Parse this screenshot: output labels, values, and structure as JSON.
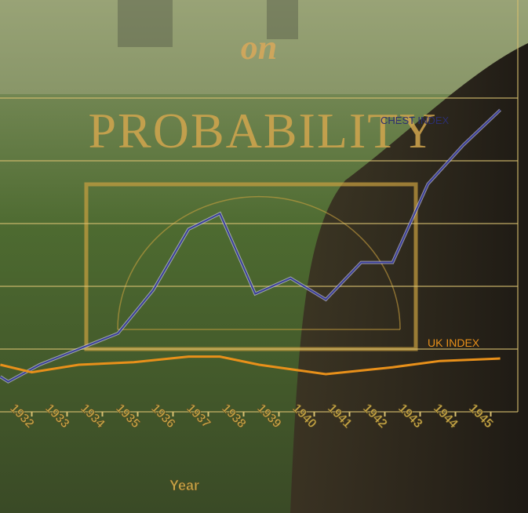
{
  "chart_data": {
    "type": "line",
    "cover_word": "on",
    "cover_title": "PROBABILITY",
    "x_label": "Year",
    "xlim": [
      1931.1,
      1946.0
    ],
    "ylim": [
      0,
      6.5
    ],
    "xticks": [
      1932,
      1933,
      1934,
      1935,
      1936,
      1937,
      1938,
      1939,
      1940,
      1941,
      1942,
      1943,
      1944,
      1945
    ],
    "yticks": [
      0,
      1,
      2,
      3,
      4,
      5
    ],
    "grid": true,
    "series": [
      {
        "name": "CHEST INDEX",
        "color": "#3b3f9c",
        "x": [
          1931.11,
          1931.33,
          1932.22,
          1933.33,
          1934.44,
          1935.44,
          1936.44,
          1937.33,
          1938.33,
          1939.33,
          1940.33,
          1941.33,
          1942.22,
          1943.22,
          1944.22,
          1945.27
        ],
        "values": [
          0.56,
          0.48,
          0.75,
          1.0,
          1.25,
          1.94,
          2.91,
          3.16,
          1.88,
          2.13,
          1.79,
          2.38,
          2.38,
          3.63,
          4.25,
          4.81
        ]
      },
      {
        "name": "UK INDEX",
        "color": "#e8901a",
        "x": [
          1931.11,
          1932.0,
          1933.33,
          1934.89,
          1936.44,
          1937.33,
          1938.44,
          1940.33,
          1942.22,
          1943.56,
          1945.27
        ],
        "values": [
          0.75,
          0.63,
          0.75,
          0.79,
          0.88,
          0.88,
          0.75,
          0.6,
          0.71,
          0.81,
          0.85
        ]
      }
    ]
  }
}
